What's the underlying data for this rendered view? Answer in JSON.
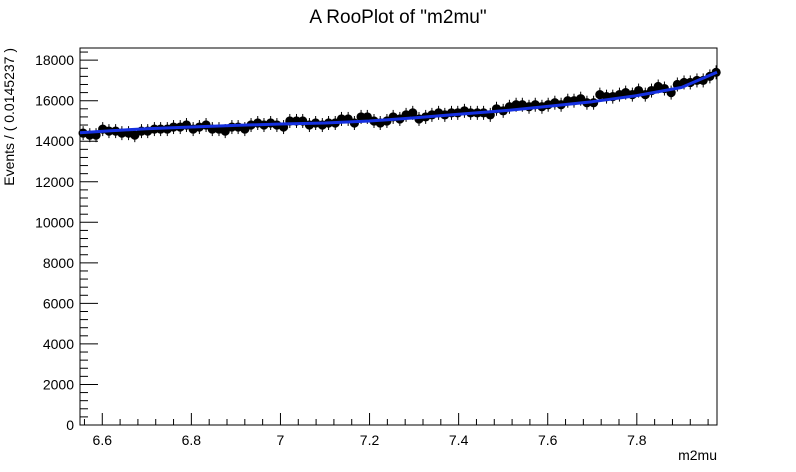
{
  "chart_data": {
    "type": "scatter",
    "title": "A RooPlot of \"m2mu\"",
    "xlabel": "m2mu",
    "ylabel": "Events / ( 0.0145237 )",
    "xlim": [
      6.55,
      7.98
    ],
    "ylim": [
      0,
      18600
    ],
    "x_ticks": [
      6.6,
      6.8,
      7,
      7.2,
      7.4,
      7.6,
      7.8
    ],
    "x_tick_labels": [
      "6.6",
      "6.8",
      "7",
      "7.2",
      "7.4",
      "7.6",
      "7.8"
    ],
    "y_ticks": [
      0,
      2000,
      4000,
      6000,
      8000,
      10000,
      12000,
      14000,
      16000,
      18000
    ],
    "y_tick_labels": [
      "0",
      "2000",
      "4000",
      "6000",
      "8000",
      "10000",
      "12000",
      "14000",
      "16000",
      "18000"
    ],
    "grid": false,
    "series": [
      {
        "kind": "points",
        "color": "#000000",
        "x": [
          6.557,
          6.572,
          6.586,
          6.601,
          6.615,
          6.63,
          6.644,
          6.659,
          6.673,
          6.688,
          6.702,
          6.717,
          6.731,
          6.746,
          6.76,
          6.775,
          6.789,
          6.804,
          6.818,
          6.833,
          6.847,
          6.862,
          6.876,
          6.891,
          6.905,
          6.92,
          6.934,
          6.949,
          6.963,
          6.978,
          6.992,
          7.007,
          7.021,
          7.036,
          7.05,
          7.065,
          7.079,
          7.094,
          7.108,
          7.123,
          7.137,
          7.152,
          7.166,
          7.181,
          7.195,
          7.21,
          7.224,
          7.239,
          7.253,
          7.268,
          7.282,
          7.297,
          7.311,
          7.326,
          7.34,
          7.355,
          7.369,
          7.384,
          7.398,
          7.413,
          7.427,
          7.442,
          7.456,
          7.471,
          7.485,
          7.5,
          7.514,
          7.529,
          7.543,
          7.558,
          7.572,
          7.587,
          7.601,
          7.616,
          7.63,
          7.645,
          7.659,
          7.674,
          7.688,
          7.703,
          7.717,
          7.732,
          7.746,
          7.761,
          7.775,
          7.79,
          7.804,
          7.819,
          7.833,
          7.848,
          7.862,
          7.877,
          7.891,
          7.906,
          7.92,
          7.935,
          7.949,
          7.964,
          7.978
        ],
        "y": [
          14400,
          14300,
          14300,
          14600,
          14500,
          14500,
          14400,
          14400,
          14300,
          14500,
          14500,
          14600,
          14600,
          14600,
          14700,
          14700,
          14800,
          14600,
          14700,
          14800,
          14600,
          14600,
          14500,
          14700,
          14700,
          14600,
          14800,
          14900,
          14800,
          14900,
          14800,
          14700,
          15000,
          15000,
          15000,
          14800,
          14900,
          14800,
          14900,
          14900,
          15100,
          15100,
          14900,
          15200,
          15200,
          15000,
          14900,
          15000,
          15200,
          15100,
          15300,
          15400,
          15100,
          15200,
          15300,
          15400,
          15300,
          15400,
          15400,
          15500,
          15400,
          15400,
          15400,
          15300,
          15600,
          15500,
          15700,
          15800,
          15800,
          15700,
          15800,
          15700,
          15800,
          15900,
          15800,
          16000,
          16000,
          16100,
          15900,
          15900,
          16300,
          16200,
          16200,
          16300,
          16400,
          16300,
          16500,
          16300,
          16500,
          16700,
          16600,
          16400,
          16800,
          16900,
          16900,
          17000,
          17000,
          17200,
          17400
        ]
      },
      {
        "kind": "fit-line",
        "color": "#1530e0",
        "x": [
          6.55,
          6.62,
          6.7,
          6.8,
          6.9,
          7.0,
          7.1,
          7.2,
          7.3,
          7.4,
          7.5,
          7.6,
          7.7,
          7.8,
          7.9,
          7.98
        ],
        "y": [
          14420,
          14520,
          14620,
          14700,
          14780,
          14850,
          14900,
          15000,
          15150,
          15330,
          15500,
          15720,
          15950,
          16250,
          16650,
          17400
        ]
      }
    ]
  }
}
